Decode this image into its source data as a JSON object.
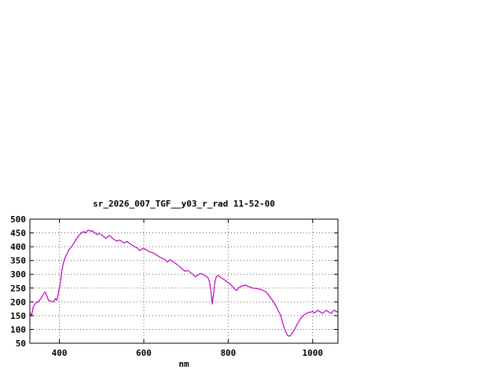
{
  "chart_data": {
    "type": "line",
    "title": "sr_2026_007_TGF__y03_r_rad 11-52-00",
    "xlabel": "nm",
    "ylabel": "",
    "xlim": [
      330,
      1060
    ],
    "ylim": [
      50,
      500
    ],
    "x_ticks": [
      400,
      600,
      800,
      1000
    ],
    "y_ticks": [
      50,
      100,
      150,
      200,
      250,
      300,
      350,
      400,
      450,
      500
    ],
    "grid": true,
    "legend": "none",
    "line_color": "#c000c0",
    "points": [
      [
        330,
        165
      ],
      [
        334,
        148
      ],
      [
        338,
        182
      ],
      [
        344,
        196
      ],
      [
        350,
        200
      ],
      [
        356,
        212
      ],
      [
        362,
        228
      ],
      [
        366,
        236
      ],
      [
        370,
        222
      ],
      [
        374,
        206
      ],
      [
        380,
        202
      ],
      [
        386,
        200
      ],
      [
        390,
        212
      ],
      [
        394,
        206
      ],
      [
        398,
        235
      ],
      [
        402,
        265
      ],
      [
        406,
        315
      ],
      [
        410,
        345
      ],
      [
        414,
        362
      ],
      [
        418,
        375
      ],
      [
        422,
        388
      ],
      [
        426,
        395
      ],
      [
        430,
        403
      ],
      [
        434,
        412
      ],
      [
        438,
        422
      ],
      [
        442,
        432
      ],
      [
        446,
        440
      ],
      [
        450,
        447
      ],
      [
        454,
        452
      ],
      [
        458,
        455
      ],
      [
        462,
        450
      ],
      [
        466,
        458
      ],
      [
        470,
        460
      ],
      [
        474,
        455
      ],
      [
        478,
        458
      ],
      [
        482,
        452
      ],
      [
        486,
        448
      ],
      [
        490,
        443
      ],
      [
        494,
        450
      ],
      [
        498,
        446
      ],
      [
        502,
        440
      ],
      [
        506,
        436
      ],
      [
        510,
        430
      ],
      [
        514,
        436
      ],
      [
        518,
        441
      ],
      [
        522,
        437
      ],
      [
        526,
        430
      ],
      [
        530,
        426
      ],
      [
        536,
        420
      ],
      [
        542,
        424
      ],
      [
        548,
        419
      ],
      [
        554,
        414
      ],
      [
        560,
        419
      ],
      [
        566,
        412
      ],
      [
        572,
        406
      ],
      [
        578,
        400
      ],
      [
        584,
        396
      ],
      [
        590,
        386
      ],
      [
        596,
        392
      ],
      [
        602,
        392
      ],
      [
        608,
        387
      ],
      [
        614,
        381
      ],
      [
        620,
        379
      ],
      [
        626,
        374
      ],
      [
        632,
        368
      ],
      [
        638,
        362
      ],
      [
        644,
        358
      ],
      [
        650,
        354
      ],
      [
        656,
        344
      ],
      [
        662,
        353
      ],
      [
        668,
        347
      ],
      [
        674,
        341
      ],
      [
        680,
        334
      ],
      [
        686,
        327
      ],
      [
        692,
        318
      ],
      [
        698,
        311
      ],
      [
        704,
        314
      ],
      [
        710,
        307
      ],
      [
        716,
        300
      ],
      [
        722,
        291
      ],
      [
        728,
        297
      ],
      [
        734,
        303
      ],
      [
        740,
        300
      ],
      [
        746,
        294
      ],
      [
        752,
        288
      ],
      [
        756,
        270
      ],
      [
        759,
        240
      ],
      [
        762,
        192
      ],
      [
        765,
        225
      ],
      [
        768,
        268
      ],
      [
        772,
        292
      ],
      [
        776,
        296
      ],
      [
        780,
        291
      ],
      [
        786,
        285
      ],
      [
        792,
        279
      ],
      [
        798,
        272
      ],
      [
        804,
        265
      ],
      [
        810,
        256
      ],
      [
        816,
        246
      ],
      [
        820,
        241
      ],
      [
        824,
        250
      ],
      [
        828,
        255
      ],
      [
        834,
        258
      ],
      [
        840,
        261
      ],
      [
        846,
        257
      ],
      [
        852,
        253
      ],
      [
        858,
        250
      ],
      [
        864,
        249
      ],
      [
        870,
        247
      ],
      [
        876,
        246
      ],
      [
        882,
        242
      ],
      [
        888,
        238
      ],
      [
        894,
        228
      ],
      [
        900,
        215
      ],
      [
        906,
        203
      ],
      [
        912,
        188
      ],
      [
        918,
        170
      ],
      [
        924,
        152
      ],
      [
        928,
        130
      ],
      [
        932,
        108
      ],
      [
        936,
        92
      ],
      [
        940,
        80
      ],
      [
        944,
        75
      ],
      [
        948,
        79
      ],
      [
        952,
        88
      ],
      [
        956,
        97
      ],
      [
        960,
        108
      ],
      [
        964,
        120
      ],
      [
        968,
        131
      ],
      [
        972,
        140
      ],
      [
        976,
        148
      ],
      [
        980,
        153
      ],
      [
        984,
        157
      ],
      [
        988,
        160
      ],
      [
        992,
        162
      ],
      [
        996,
        163
      ],
      [
        1000,
        165
      ],
      [
        1004,
        160
      ],
      [
        1008,
        164
      ],
      [
        1012,
        169
      ],
      [
        1016,
        166
      ],
      [
        1020,
        161
      ],
      [
        1024,
        158
      ],
      [
        1028,
        164
      ],
      [
        1032,
        169
      ],
      [
        1036,
        166
      ],
      [
        1040,
        161
      ],
      [
        1044,
        158
      ],
      [
        1048,
        166
      ],
      [
        1052,
        170
      ],
      [
        1056,
        163
      ],
      [
        1060,
        168
      ]
    ]
  }
}
